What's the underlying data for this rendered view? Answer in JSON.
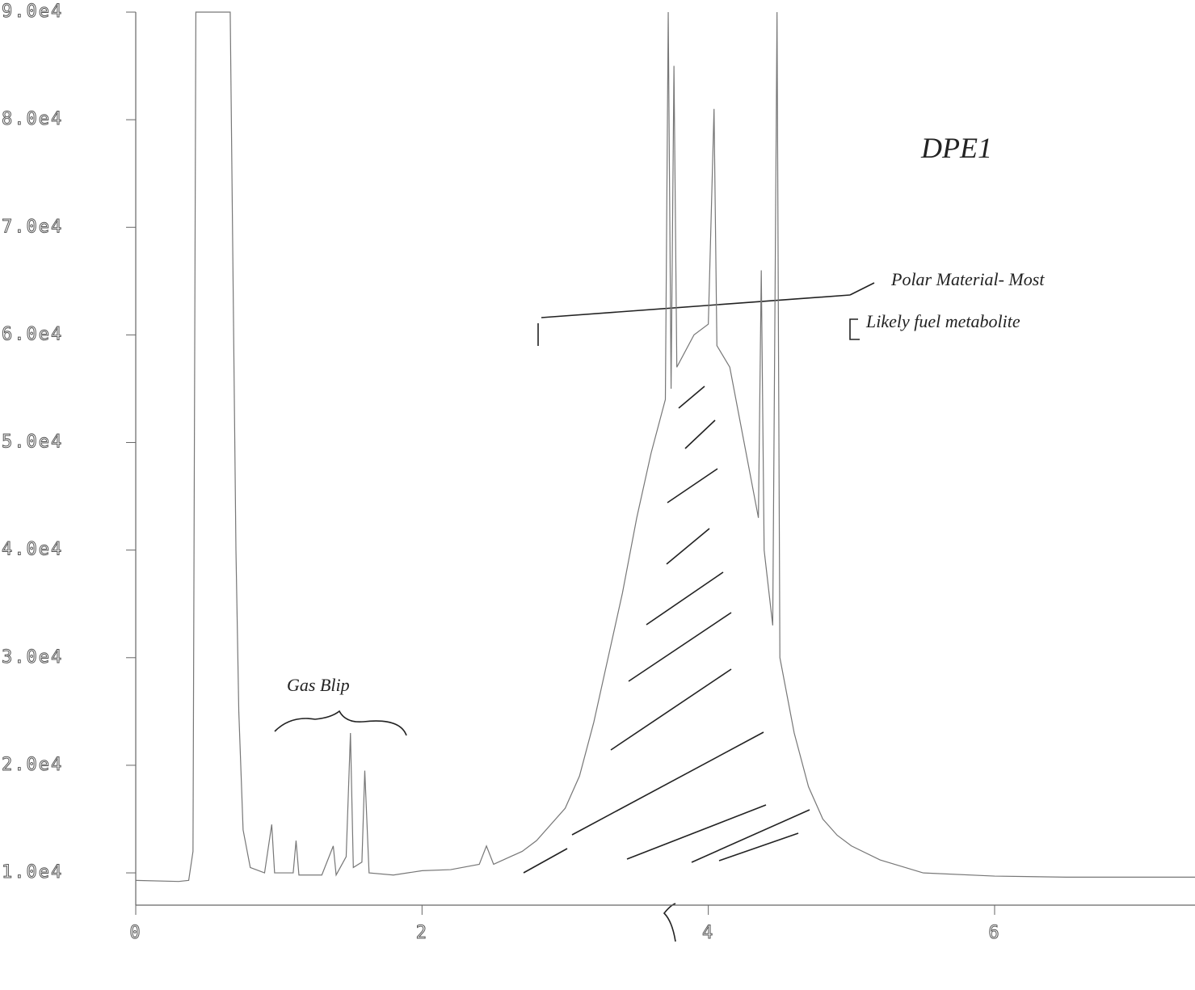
{
  "chart_data": {
    "type": "line",
    "annotations": [
      "DPE1",
      "Polar Material- Most",
      "Likely fuel metabolite",
      "Gas Blip"
    ],
    "xlim": [
      0,
      7.4
    ],
    "xticks": [
      0,
      2,
      4,
      6
    ],
    "ylim": [
      7000,
      90000
    ],
    "yticks": [
      {
        "value": 10000,
        "label": "1.0e4"
      },
      {
        "value": 20000,
        "label": "2.0e4"
      },
      {
        "value": 30000,
        "label": "3.0e4"
      },
      {
        "value": 40000,
        "label": "4.0e4"
      },
      {
        "value": 50000,
        "label": "5.0e4"
      },
      {
        "value": 60000,
        "label": "6.0e4"
      },
      {
        "value": 70000,
        "label": "7.0e4"
      },
      {
        "value": 80000,
        "label": "8.0e4"
      },
      {
        "value": 90000,
        "label": "9.0e4"
      }
    ],
    "series": [
      {
        "color": "#777777",
        "x": [
          0,
          0.3,
          0.37,
          0.4,
          0.42,
          0.66,
          0.7,
          0.72,
          0.75,
          0.8,
          0.9,
          0.95,
          0.97,
          1.1,
          1.12,
          1.14,
          1.3,
          1.38,
          1.4,
          1.47,
          1.5,
          1.52,
          1.58,
          1.6,
          1.63,
          1.8,
          2.0,
          2.2,
          2.4,
          2.45,
          2.5,
          2.7,
          2.8,
          3.0,
          3.1,
          3.2,
          3.3,
          3.4,
          3.5,
          3.6,
          3.7,
          3.72,
          3.74,
          3.76,
          3.78,
          3.9,
          4.0,
          4.04,
          4.06,
          4.15,
          4.25,
          4.35,
          4.37,
          4.39,
          4.45,
          4.48,
          4.5,
          4.6,
          4.7,
          4.8,
          4.9,
          5.0,
          5.2,
          5.5,
          6.0,
          6.5,
          7.4
        ],
        "values": [
          9300,
          9200,
          9300,
          12000,
          90000,
          90000,
          40000,
          25000,
          14000,
          10500,
          10000,
          14500,
          10000,
          10000,
          13000,
          9800,
          9800,
          12500,
          9800,
          11500,
          23000,
          10500,
          11000,
          19500,
          10000,
          9800,
          10200,
          10300,
          10800,
          12500,
          10800,
          12000,
          13000,
          16000,
          19000,
          24000,
          30000,
          36000,
          43000,
          49000,
          54000,
          90000,
          55000,
          85000,
          57000,
          60000,
          61000,
          81000,
          59000,
          57000,
          50000,
          43000,
          66000,
          40000,
          33000,
          90000,
          30000,
          23000,
          18000,
          15000,
          13500,
          12500,
          11200,
          10000,
          9700,
          9600,
          9600
        ]
      }
    ]
  }
}
